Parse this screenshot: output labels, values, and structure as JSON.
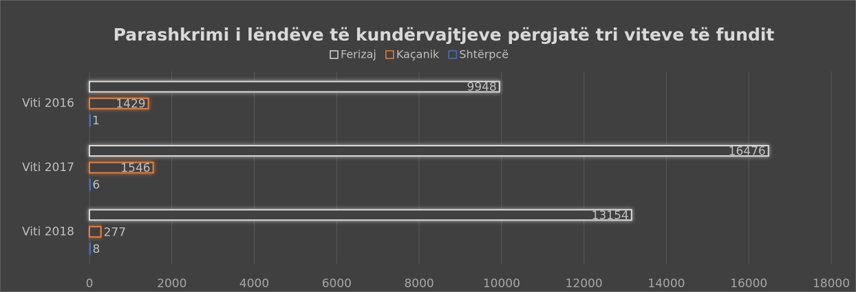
{
  "chart_data": {
    "type": "bar",
    "orientation": "horizontal",
    "title": "Parashkrimi i lëndëve të kundërvajtjeve përgjatë tri viteve të fundit",
    "categories": [
      "Viti 2016",
      "Viti 2017",
      "Viti 2018"
    ],
    "series": [
      {
        "name": "Ferizaj",
        "color": "#d9d9d9",
        "values": [
          9948,
          16476,
          13154
        ]
      },
      {
        "name": "Kaçanik",
        "color": "#ed7d31",
        "values": [
          1429,
          1546,
          277
        ]
      },
      {
        "name": "Shtërpcë",
        "color": "#4472c4",
        "values": [
          1,
          6,
          8
        ]
      }
    ],
    "xlim": [
      0,
      18000
    ],
    "xticks": [
      0,
      2000,
      4000,
      6000,
      8000,
      10000,
      12000,
      14000,
      16000,
      18000
    ],
    "grid": true,
    "legend": "top"
  }
}
